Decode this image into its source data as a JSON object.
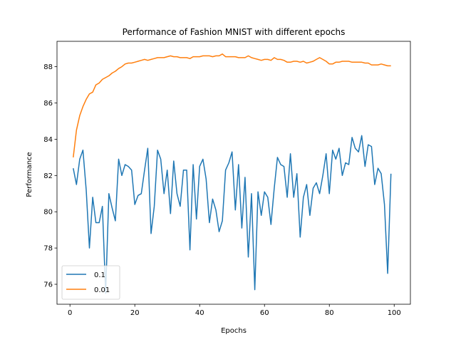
{
  "chart_data": {
    "type": "line",
    "title": "Performance of Fashion MNIST with different epochs",
    "xlabel": "Epochs",
    "ylabel": "Performance",
    "xlim": [
      -4,
      105
    ],
    "ylim": [
      74.9,
      89.4
    ],
    "xticks": [
      0,
      20,
      40,
      60,
      80,
      100
    ],
    "yticks": [
      76,
      78,
      80,
      82,
      84,
      86,
      88
    ],
    "grid": false,
    "legend_position": "lower-left",
    "x": [
      1,
      2,
      3,
      4,
      5,
      6,
      7,
      8,
      9,
      10,
      11,
      12,
      13,
      14,
      15,
      16,
      17,
      18,
      19,
      20,
      21,
      22,
      23,
      24,
      25,
      26,
      27,
      28,
      29,
      30,
      31,
      32,
      33,
      34,
      35,
      36,
      37,
      38,
      39,
      40,
      41,
      42,
      43,
      44,
      45,
      46,
      47,
      48,
      49,
      50,
      51,
      52,
      53,
      54,
      55,
      56,
      57,
      58,
      59,
      60,
      61,
      62,
      63,
      64,
      65,
      66,
      67,
      68,
      69,
      70,
      71,
      72,
      73,
      74,
      75,
      76,
      77,
      78,
      79,
      80,
      81,
      82,
      83,
      84,
      85,
      86,
      87,
      88,
      89,
      90,
      91,
      92,
      93,
      94,
      95,
      96,
      97,
      98,
      99
    ],
    "series": [
      {
        "name": "0.1",
        "color": "#1f77b4",
        "values": [
          82.4,
          81.5,
          82.9,
          83.4,
          81.2,
          78.0,
          80.8,
          79.4,
          79.4,
          80.3,
          75.5,
          81.0,
          80.2,
          79.5,
          82.9,
          82.0,
          82.6,
          82.5,
          82.3,
          80.4,
          80.9,
          81.0,
          82.3,
          83.5,
          78.8,
          80.3,
          83.4,
          82.9,
          81.0,
          82.3,
          79.9,
          82.8,
          81.0,
          80.3,
          82.3,
          82.3,
          77.9,
          82.6,
          79.6,
          82.5,
          82.9,
          81.8,
          79.4,
          80.7,
          80.1,
          78.9,
          79.5,
          82.3,
          82.7,
          83.3,
          80.1,
          82.6,
          79.1,
          81.9,
          77.5,
          81.0,
          75.7,
          81.1,
          79.8,
          81.1,
          80.8,
          79.3,
          81.3,
          83.0,
          82.6,
          82.5,
          80.8,
          83.2,
          80.8,
          82.1,
          78.6,
          80.8,
          81.5,
          79.8,
          81.3,
          81.6,
          81.0,
          82.0,
          83.2,
          81.0,
          83.4,
          82.9,
          83.5,
          82.0,
          82.7,
          82.6,
          84.1,
          83.5,
          83.3,
          84.2,
          82.5,
          83.7,
          83.6,
          81.5,
          82.4,
          82.1,
          80.4,
          76.6,
          82.1
        ]
      },
      {
        "name": "0.01",
        "color": "#ff7f0e",
        "values": [
          83.0,
          84.5,
          85.3,
          85.8,
          86.2,
          86.5,
          86.6,
          87.0,
          87.1,
          87.3,
          87.4,
          87.5,
          87.65,
          87.75,
          87.9,
          88.0,
          88.15,
          88.2,
          88.2,
          88.25,
          88.3,
          88.35,
          88.4,
          88.35,
          88.4,
          88.45,
          88.5,
          88.5,
          88.5,
          88.55,
          88.6,
          88.55,
          88.55,
          88.5,
          88.5,
          88.5,
          88.45,
          88.55,
          88.55,
          88.55,
          88.6,
          88.6,
          88.6,
          88.55,
          88.6,
          88.6,
          88.7,
          88.55,
          88.55,
          88.55,
          88.55,
          88.5,
          88.5,
          88.5,
          88.6,
          88.5,
          88.45,
          88.4,
          88.35,
          88.4,
          88.4,
          88.35,
          88.5,
          88.4,
          88.4,
          88.35,
          88.25,
          88.25,
          88.3,
          88.3,
          88.25,
          88.3,
          88.2,
          88.25,
          88.3,
          88.4,
          88.5,
          88.4,
          88.3,
          88.15,
          88.15,
          88.25,
          88.25,
          88.3,
          88.3,
          88.3,
          88.25,
          88.25,
          88.25,
          88.25,
          88.2,
          88.2,
          88.1,
          88.1,
          88.1,
          88.15,
          88.1,
          88.05,
          88.05
        ]
      }
    ]
  }
}
